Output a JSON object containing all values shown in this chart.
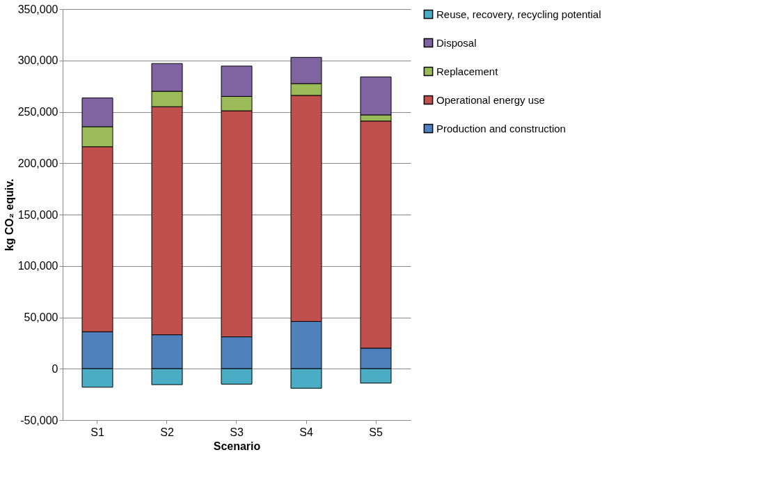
{
  "chart_data": {
    "type": "bar",
    "stacked": true,
    "xlabel": "Scenario",
    "ylabel": "kg CO₂ equiv.",
    "categories": [
      "S1",
      "S2",
      "S3",
      "S4",
      "S5"
    ],
    "series": [
      {
        "name": "Production and construction",
        "color": "#4f81bd",
        "values": [
          36000,
          33000,
          31000,
          46000,
          20000
        ]
      },
      {
        "name": "Operational energy use",
        "color": "#c0504d",
        "values": [
          180000,
          222000,
          220000,
          220000,
          221000
        ]
      },
      {
        "name": "Replacement",
        "color": "#9bbb59",
        "values": [
          19500,
          15000,
          14000,
          11500,
          6000
        ]
      },
      {
        "name": "Disposal",
        "color": "#8064a2",
        "values": [
          28000,
          27000,
          29500,
          25500,
          37000
        ]
      },
      {
        "name": "Reuse, recovery, recycling potential",
        "color": "#4bacc6",
        "values": [
          -18000,
          -15500,
          -15000,
          -19000,
          -14000
        ]
      }
    ],
    "ylim": [
      -50000,
      350000
    ],
    "yticks": [
      {
        "value": -50000,
        "label": "-50,000"
      },
      0,
      {
        "value": 50000,
        "label": "50,000"
      },
      {
        "value": 100000,
        "label": "100,000"
      },
      {
        "value": 150000,
        "label": "150,000"
      },
      {
        "value": 200000,
        "label": "200,000"
      },
      {
        "value": 250000,
        "label": "250,000"
      },
      {
        "value": 300000,
        "label": "300,000"
      },
      {
        "value": 350000,
        "label": "350,000"
      }
    ],
    "grid": "y",
    "legend": "right"
  }
}
